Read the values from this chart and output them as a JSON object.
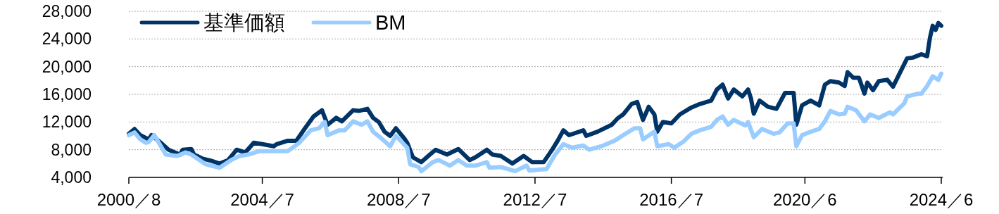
{
  "chart_data": {
    "type": "line",
    "ylim": [
      4000,
      28000
    ],
    "yticks": [
      {
        "value": 4000,
        "label": "4,000"
      },
      {
        "value": 8000,
        "label": "8,000"
      },
      {
        "value": 12000,
        "label": "12,000"
      },
      {
        "value": 16000,
        "label": "16,000"
      },
      {
        "value": 20000,
        "label": "20,000"
      },
      {
        "value": 24000,
        "label": "24,000"
      },
      {
        "value": 28000,
        "label": "28,000"
      }
    ],
    "xlim": [
      "2000-08",
      "2024-06"
    ],
    "xticks": [
      {
        "value": "2000-08",
        "label": "2000／8"
      },
      {
        "value": "2004-07",
        "label": "2004／7"
      },
      {
        "value": "2008-07",
        "label": "2008／7"
      },
      {
        "value": "2012-07",
        "label": "2012／7"
      },
      {
        "value": "2016-07",
        "label": "2016／7"
      },
      {
        "value": "2020-06",
        "label": "2020／6"
      },
      {
        "value": "2024-06",
        "label": "2024／6"
      }
    ],
    "grid": "y",
    "legend": "top left",
    "marker": "none",
    "line_style": "solid",
    "series": [
      {
        "name": "基準価額",
        "color": "#003366",
        "x": [
          "2000-08",
          "2000-10",
          "2000-12",
          "2001-03",
          "2001-04",
          "2001-07",
          "2001-10",
          "2002-02",
          "2002-03",
          "2002-06",
          "2002-07",
          "2002-10",
          "2003-01",
          "2003-04",
          "2003-07",
          "2003-10",
          "2004-01",
          "2004-04",
          "2004-07",
          "2004-11",
          "2004-12",
          "2005-04",
          "2005-07",
          "2005-10",
          "2006-01",
          "2006-04",
          "2006-06",
          "2006-09",
          "2006-11",
          "2007-03",
          "2007-05",
          "2007-08",
          "2007-10",
          "2007-12",
          "2008-02",
          "2008-04",
          "2008-06",
          "2008-09",
          "2008-10",
          "2008-12",
          "2009-03",
          "2009-06",
          "2009-08",
          "2009-12",
          "2010-04",
          "2010-08",
          "2010-10",
          "2011-02",
          "2011-04",
          "2011-07",
          "2011-11",
          "2012-03",
          "2012-06",
          "2012-10",
          "2013-01",
          "2013-03",
          "2013-05",
          "2013-07",
          "2013-12",
          "2014-01",
          "2014-05",
          "2014-10",
          "2014-12",
          "2015-02",
          "2015-05",
          "2015-07",
          "2015-09",
          "2015-11",
          "2016-01",
          "2016-02",
          "2016-04",
          "2016-07",
          "2016-10",
          "2017-02",
          "2017-05",
          "2017-09",
          "2017-11",
          "2018-01",
          "2018-03",
          "2018-05",
          "2018-08",
          "2018-10",
          "2018-11",
          "2018-12",
          "2019-02",
          "2019-05",
          "2019-08",
          "2019-11",
          "2020-02",
          "2020-03",
          "2020-05",
          "2020-08",
          "2020-11",
          "2021-01",
          "2021-03",
          "2021-06",
          "2021-08",
          "2021-09",
          "2021-11",
          "2022-01",
          "2022-03",
          "2022-04",
          "2022-06",
          "2022-08",
          "2022-11",
          "2023-01",
          "2023-03",
          "2023-06",
          "2023-08",
          "2023-11",
          "2024-01",
          "2024-02",
          "2024-03",
          "2024-04",
          "2024-05",
          "2024-06"
        ],
        "values": [
          10300,
          11000,
          10100,
          9500,
          10100,
          9100,
          8000,
          7300,
          8000,
          8100,
          7300,
          6700,
          6400,
          6000,
          6500,
          8000,
          7600,
          9000,
          8800,
          8500,
          8800,
          9300,
          9300,
          11100,
          12800,
          13700,
          11600,
          12600,
          12100,
          13700,
          13600,
          13900,
          12600,
          12000,
          10600,
          10000,
          11100,
          9600,
          9000,
          6900,
          6200,
          7300,
          8000,
          7300,
          8100,
          6500,
          6900,
          8000,
          7300,
          7100,
          6000,
          7100,
          6200,
          6200,
          8000,
          9300,
          10800,
          10100,
          10800,
          10000,
          10600,
          11600,
          12500,
          13100,
          14600,
          14900,
          12300,
          14200,
          13100,
          10600,
          12000,
          11800,
          13100,
          14100,
          14600,
          15100,
          16700,
          17400,
          15400,
          16700,
          15700,
          16700,
          15400,
          13200,
          15100,
          14200,
          13900,
          16200,
          16200,
          11600,
          14400,
          15100,
          14400,
          17400,
          17900,
          17700,
          17200,
          19200,
          18400,
          18400,
          16100,
          17700,
          16600,
          17900,
          18100,
          17100,
          18700,
          21200,
          21300,
          21800,
          21500,
          24200,
          25900,
          25300,
          26300,
          25900
        ]
      },
      {
        "name": "BM",
        "color": "#99ccff",
        "x": [
          "2000-08",
          "2000-10",
          "2000-12",
          "2001-02",
          "2001-03",
          "2001-05",
          "2001-09",
          "2002-01",
          "2002-04",
          "2002-06",
          "2002-11",
          "2003-04",
          "2003-08",
          "2003-11",
          "2004-02",
          "2004-06",
          "2004-11",
          "2005-04",
          "2005-08",
          "2005-12",
          "2006-03",
          "2006-05",
          "2006-06",
          "2006-10",
          "2006-12",
          "2007-03",
          "2007-06",
          "2007-08",
          "2007-10",
          "2008-01",
          "2008-04",
          "2008-06",
          "2008-10",
          "2008-11",
          "2009-02",
          "2009-03",
          "2009-07",
          "2009-09",
          "2010-01",
          "2010-04",
          "2010-07",
          "2010-10",
          "2011-02",
          "2011-03",
          "2011-07",
          "2011-12",
          "2012-04",
          "2012-05",
          "2012-11",
          "2013-02",
          "2013-05",
          "2013-08",
          "2013-12",
          "2014-02",
          "2014-07",
          "2014-11",
          "2015-02",
          "2015-06",
          "2015-08",
          "2015-09",
          "2016-01",
          "2016-02",
          "2016-06",
          "2016-08",
          "2016-11",
          "2017-02",
          "2017-05",
          "2017-09",
          "2017-11",
          "2018-01",
          "2018-03",
          "2018-05",
          "2018-09",
          "2018-10",
          "2018-12",
          "2019-03",
          "2019-07",
          "2019-09",
          "2019-12",
          "2020-02",
          "2020-03",
          "2020-05",
          "2020-08",
          "2020-11",
          "2021-01",
          "2021-03",
          "2021-06",
          "2021-08",
          "2021-09",
          "2021-12",
          "2022-03",
          "2022-05",
          "2022-08",
          "2022-12",
          "2023-01",
          "2023-03",
          "2023-05",
          "2023-06",
          "2023-10",
          "2023-11",
          "2024-01",
          "2024-03",
          "2024-05",
          "2024-06"
        ],
        "values": [
          10100,
          10500,
          9500,
          9000,
          9100,
          10100,
          7300,
          7100,
          7600,
          7300,
          5900,
          5400,
          6500,
          7100,
          7300,
          7800,
          7800,
          7800,
          9000,
          10800,
          11100,
          12000,
          10100,
          10800,
          10800,
          12100,
          11600,
          12100,
          10600,
          9600,
          8500,
          10000,
          8300,
          5900,
          5500,
          4900,
          6200,
          6500,
          5700,
          6500,
          5700,
          5700,
          6200,
          5400,
          5500,
          4900,
          5700,
          5000,
          5200,
          7300,
          8800,
          8300,
          8600,
          8000,
          8600,
          9300,
          10100,
          11100,
          11100,
          9500,
          10600,
          8500,
          8800,
          8300,
          9100,
          10300,
          10800,
          11300,
          12300,
          12800,
          11600,
          12300,
          11500,
          12000,
          9800,
          11000,
          10300,
          10500,
          11800,
          11800,
          8500,
          10100,
          10600,
          11000,
          12100,
          13600,
          13100,
          13200,
          14200,
          13700,
          12100,
          13100,
          12600,
          13400,
          13100,
          13900,
          14700,
          15700,
          16100,
          16100,
          17200,
          18600,
          18100,
          19000
        ]
      }
    ]
  }
}
